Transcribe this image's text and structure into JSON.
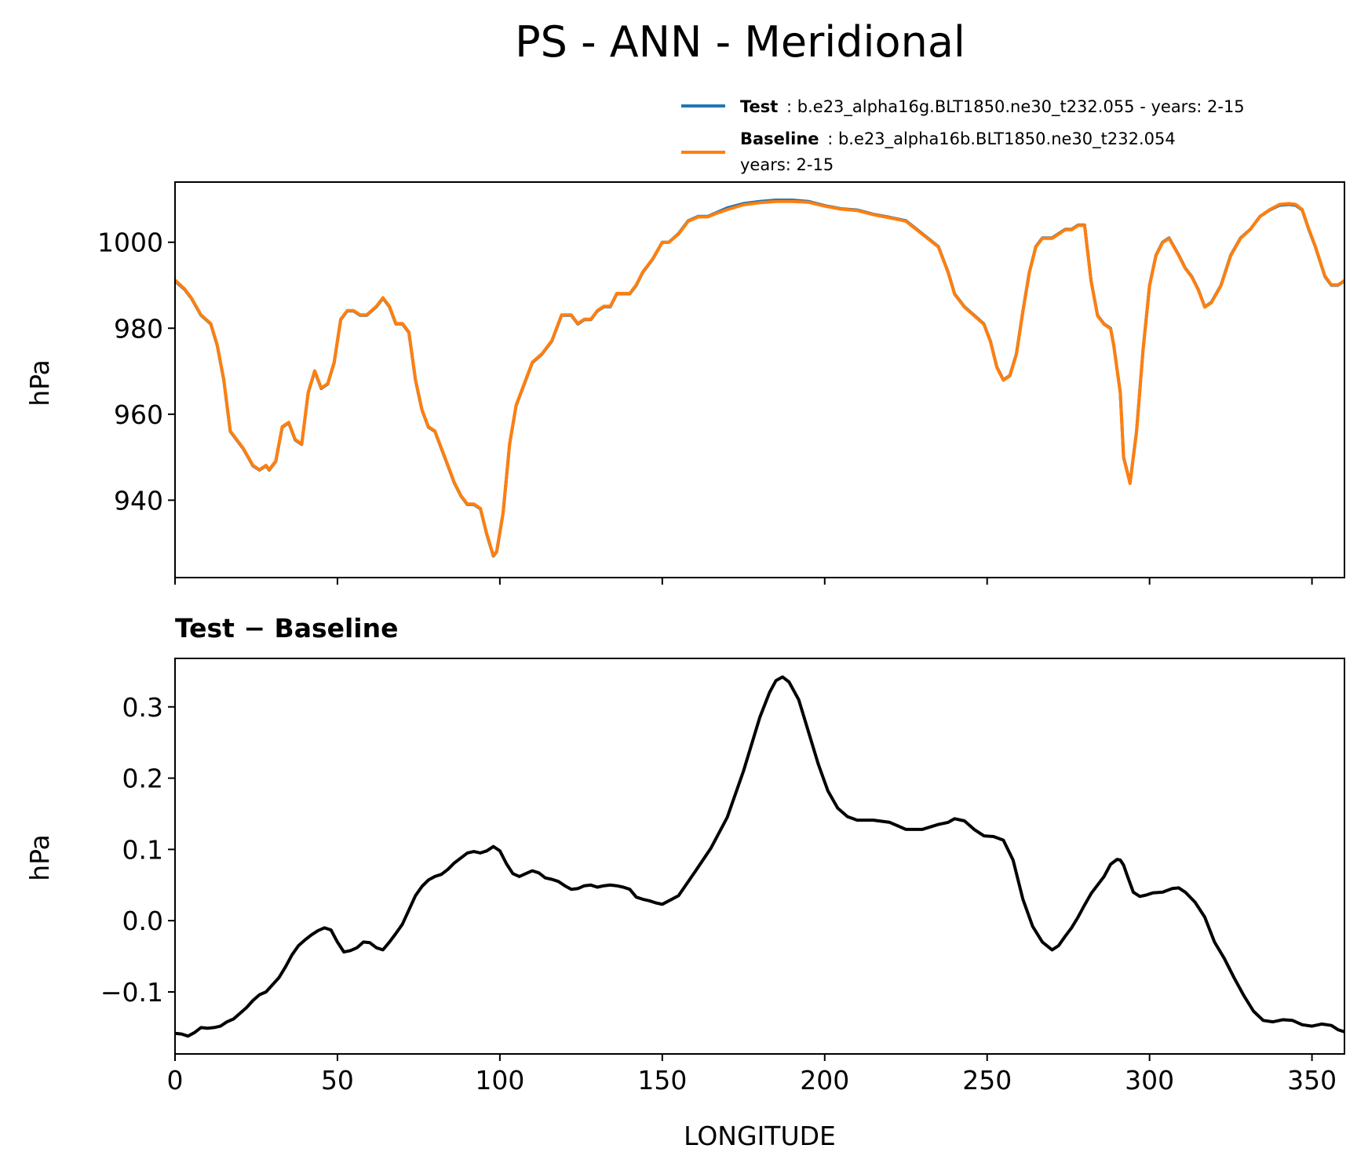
{
  "title": "PS - ANN - Meridional",
  "legend": {
    "test_name": "Test",
    "test_text": ": b.e23_alpha16g.BLT1850.ne30_t232.055 - years: 2-15",
    "base_name": "Baseline",
    "base_text": ": b.e23_alpha16b.BLT1850.ne30_t232.054",
    "base_text2": "years: 2-15"
  },
  "colors": {
    "test": "#1f77b4",
    "baseline": "#ff7f0e",
    "diff": "#000000"
  },
  "chart_data": [
    {
      "type": "line",
      "title": "",
      "xlabel": "",
      "ylabel": "hPa",
      "xlim": [
        0,
        360
      ],
      "ylim": [
        922,
        1014
      ],
      "yticks": [
        940,
        960,
        980,
        1000
      ],
      "xticks": [
        0,
        50,
        100,
        150,
        200,
        250,
        300,
        350
      ],
      "grid": false,
      "legend_position": "top-right",
      "series": [
        {
          "name": "Test",
          "x": [
            0,
            3,
            5,
            8,
            11,
            13,
            15,
            17,
            19,
            21,
            24,
            26,
            28,
            29,
            31,
            33,
            35,
            37,
            39,
            41,
            43,
            45,
            47,
            49,
            51,
            53,
            55,
            57,
            59,
            62,
            64,
            66,
            68,
            70,
            72,
            74,
            76,
            78,
            80,
            82,
            84,
            86,
            88,
            90,
            92,
            94,
            96,
            98,
            99,
            101,
            103,
            105,
            108,
            110,
            113,
            116,
            119,
            122,
            124,
            126,
            128,
            130,
            132,
            134,
            136,
            138,
            140,
            142,
            144,
            147,
            150,
            152,
            155,
            158,
            161,
            164,
            167,
            170,
            175,
            180,
            185,
            190,
            195,
            200,
            205,
            210,
            215,
            220,
            225,
            230,
            235,
            238,
            240,
            243,
            246,
            249,
            251,
            253,
            255,
            257,
            259,
            261,
            263,
            265,
            267,
            270,
            272,
            274,
            276,
            278,
            280,
            282,
            284,
            286,
            288,
            289,
            291,
            292,
            294,
            296,
            298,
            300,
            302,
            304,
            306,
            309,
            311,
            313,
            315,
            317,
            319,
            322,
            325,
            328,
            331,
            334,
            337,
            340,
            343,
            345,
            347,
            349,
            351,
            354,
            356,
            358,
            360
          ],
          "y": [
            991,
            989,
            987,
            983,
            981,
            976,
            968,
            956,
            954,
            952,
            948,
            947,
            948,
            947,
            949,
            957,
            958,
            954,
            953,
            965,
            970,
            966,
            967,
            972,
            982,
            984,
            984,
            983,
            983,
            985,
            987,
            985,
            981,
            981,
            979,
            968,
            961,
            957,
            956,
            952,
            948,
            944,
            941,
            939,
            939,
            938,
            932,
            927,
            928,
            937,
            953,
            962,
            968,
            972,
            974,
            977,
            983,
            983,
            981,
            982,
            982,
            984,
            985,
            985,
            988,
            988,
            988,
            990,
            993,
            996,
            1000,
            1000,
            1002,
            1005,
            1006,
            1006,
            1007,
            1008,
            1009,
            1009.5,
            1009.8,
            1009.8,
            1009.5,
            1008.5,
            1007.8,
            1007.5,
            1006.5,
            1005.8,
            1005,
            1002,
            999,
            993,
            988,
            985,
            983,
            981,
            977,
            971,
            968,
            969,
            974,
            984,
            993,
            999,
            1001,
            1001,
            1002,
            1003,
            1003,
            1004,
            1004,
            991,
            983,
            981,
            980,
            976,
            965,
            950,
            944,
            956,
            975,
            990,
            997,
            1000,
            1001,
            997,
            994,
            992,
            989,
            985,
            986,
            990,
            997,
            1001,
            1003,
            1006,
            1007.5,
            1008.6,
            1008.8,
            1008.6,
            1007.5,
            1003,
            999,
            992,
            990,
            990,
            991
          ]
        },
        {
          "name": "Baseline",
          "x": [
            0,
            3,
            5,
            8,
            11,
            13,
            15,
            17,
            19,
            21,
            24,
            26,
            28,
            29,
            31,
            33,
            35,
            37,
            39,
            41,
            43,
            45,
            47,
            49,
            51,
            53,
            55,
            57,
            59,
            62,
            64,
            66,
            68,
            70,
            72,
            74,
            76,
            78,
            80,
            82,
            84,
            86,
            88,
            90,
            92,
            94,
            96,
            98,
            99,
            101,
            103,
            105,
            108,
            110,
            113,
            116,
            119,
            122,
            124,
            126,
            128,
            130,
            132,
            134,
            136,
            138,
            140,
            142,
            144,
            147,
            150,
            152,
            155,
            158,
            161,
            164,
            167,
            170,
            175,
            180,
            185,
            190,
            195,
            200,
            205,
            210,
            215,
            220,
            225,
            230,
            235,
            238,
            240,
            243,
            246,
            249,
            251,
            253,
            255,
            257,
            259,
            261,
            263,
            265,
            267,
            270,
            272,
            274,
            276,
            278,
            280,
            282,
            284,
            286,
            288,
            289,
            291,
            292,
            294,
            296,
            298,
            300,
            302,
            304,
            306,
            309,
            311,
            313,
            315,
            317,
            319,
            322,
            325,
            328,
            331,
            334,
            337,
            340,
            343,
            345,
            347,
            349,
            351,
            354,
            356,
            358,
            360
          ],
          "y": [
            991.2,
            989.1,
            987.1,
            983.1,
            981.1,
            976.1,
            968.1,
            956.1,
            954.1,
            952.1,
            948.1,
            947.1,
            948.1,
            947.1,
            949.1,
            957.1,
            958.1,
            954.1,
            953.1,
            965.1,
            970.1,
            966.1,
            967.1,
            972.1,
            982.1,
            984.1,
            984.1,
            983.1,
            983.1,
            985.1,
            987.1,
            985.1,
            981.1,
            981.1,
            979.1,
            968.1,
            961.1,
            957.1,
            956.1,
            952.1,
            948.1,
            944.1,
            941.1,
            939.1,
            939.1,
            938.1,
            932.1,
            927.1,
            928.1,
            937.1,
            953.1,
            962.1,
            968.1,
            972.1,
            974.1,
            977.1,
            983.1,
            983.1,
            981.1,
            982.1,
            982.1,
            984.1,
            985.1,
            985.1,
            988.1,
            988.1,
            988.1,
            990.1,
            993.1,
            996.1,
            1000,
            1000,
            1001.9,
            1004.9,
            1005.9,
            1005.9,
            1006.8,
            1007.6,
            1008.7,
            1009.2,
            1009.5,
            1009.5,
            1009.3,
            1008.4,
            1007.7,
            1007.4,
            1006.4,
            1005.7,
            1004.9,
            1001.9,
            998.9,
            992.9,
            987.9,
            984.9,
            982.9,
            980.9,
            976.9,
            970.9,
            967.9,
            968.9,
            973.9,
            983.9,
            992.9,
            998.9,
            1000.9,
            1000.9,
            1001.9,
            1002.9,
            1002.9,
            1003.9,
            1003.9,
            990.9,
            982.9,
            980.9,
            979.9,
            975.9,
            964.9,
            949.9,
            943.9,
            955.9,
            974.9,
            989.9,
            996.9,
            999.9,
            1000.9,
            996.9,
            993.9,
            991.9,
            988.9,
            984.9,
            985.9,
            989.9,
            996.9,
            1000.9,
            1003,
            1006,
            1007.6,
            1008.8,
            1009,
            1008.8,
            1007.6,
            1003.1,
            999.1,
            992.1,
            990.1,
            990.1,
            991.1
          ]
        }
      ]
    },
    {
      "type": "line",
      "title": "Test − Baseline",
      "xlabel": "LONGITUDE",
      "ylabel": "hPa",
      "xlim": [
        0,
        360
      ],
      "ylim": [
        -0.187,
        0.368
      ],
      "yticks": [
        -0.1,
        0.0,
        0.1,
        0.2,
        0.3
      ],
      "ytick_labels": [
        "−0.1",
        "0.0",
        "0.1",
        "0.2",
        "0.3"
      ],
      "xticks": [
        0,
        50,
        100,
        150,
        200,
        250,
        300,
        350
      ],
      "grid": false,
      "series": [
        {
          "x": [
            0,
            2,
            4,
            6,
            8,
            10,
            12,
            14,
            16,
            18,
            20,
            22,
            24,
            26,
            28,
            30,
            32,
            34,
            36,
            38,
            40,
            42,
            44,
            46,
            48,
            50,
            52,
            54,
            56,
            58,
            60,
            62,
            64,
            66,
            68,
            70,
            72,
            74,
            76,
            78,
            80,
            82,
            84,
            86,
            88,
            90,
            92,
            94,
            96,
            98,
            100,
            102,
            104,
            106,
            108,
            110,
            112,
            114,
            116,
            118,
            120,
            122,
            124,
            126,
            128,
            130,
            132,
            134,
            136,
            138,
            140,
            142,
            144,
            146,
            148,
            150,
            155,
            160,
            165,
            170,
            175,
            180,
            183,
            185,
            187,
            189,
            192,
            195,
            198,
            201,
            204,
            207,
            210,
            215,
            220,
            225,
            230,
            235,
            238,
            240,
            243,
            246,
            249,
            252,
            255,
            258,
            261,
            264,
            267,
            270,
            272,
            274,
            276,
            278,
            280,
            282,
            284,
            286,
            288,
            290,
            291,
            292,
            293,
            295,
            297,
            299,
            301,
            304,
            307,
            309,
            311,
            314,
            317,
            320,
            323,
            326,
            329,
            332,
            335,
            338,
            341,
            344,
            347,
            350,
            353,
            356,
            358,
            360
          ],
          "y": [
            -0.158,
            -0.159,
            -0.162,
            -0.157,
            -0.15,
            -0.151,
            -0.15,
            -0.148,
            -0.142,
            -0.138,
            -0.13,
            -0.122,
            -0.112,
            -0.104,
            -0.1,
            -0.09,
            -0.08,
            -0.065,
            -0.048,
            -0.035,
            -0.027,
            -0.02,
            -0.014,
            -0.01,
            -0.013,
            -0.03,
            -0.044,
            -0.042,
            -0.038,
            -0.03,
            -0.031,
            -0.038,
            -0.041,
            -0.03,
            -0.018,
            -0.005,
            0.015,
            0.035,
            0.048,
            0.057,
            0.062,
            0.065,
            0.072,
            0.081,
            0.088,
            0.095,
            0.097,
            0.095,
            0.098,
            0.104,
            0.098,
            0.08,
            0.066,
            0.062,
            0.066,
            0.07,
            0.067,
            0.06,
            0.058,
            0.055,
            0.049,
            0.044,
            0.045,
            0.049,
            0.05,
            0.047,
            0.049,
            0.05,
            0.049,
            0.047,
            0.044,
            0.033,
            0.03,
            0.028,
            0.025,
            0.023,
            0.035,
            0.068,
            0.102,
            0.145,
            0.21,
            0.285,
            0.32,
            0.337,
            0.342,
            0.335,
            0.31,
            0.265,
            0.22,
            0.182,
            0.158,
            0.146,
            0.141,
            0.141,
            0.138,
            0.128,
            0.128,
            0.135,
            0.138,
            0.143,
            0.14,
            0.128,
            0.119,
            0.118,
            0.113,
            0.085,
            0.03,
            -0.008,
            -0.03,
            -0.041,
            -0.035,
            -0.022,
            -0.01,
            0.005,
            0.022,
            0.038,
            0.05,
            0.062,
            0.079,
            0.086,
            0.085,
            0.078,
            0.065,
            0.04,
            0.034,
            0.036,
            0.039,
            0.04,
            0.045,
            0.046,
            0.04,
            0.026,
            0.005,
            -0.03,
            -0.053,
            -0.08,
            -0.105,
            -0.127,
            -0.14,
            -0.142,
            -0.139,
            -0.14,
            -0.146,
            -0.148,
            -0.145,
            -0.147,
            -0.153,
            -0.156
          ]
        }
      ]
    }
  ]
}
